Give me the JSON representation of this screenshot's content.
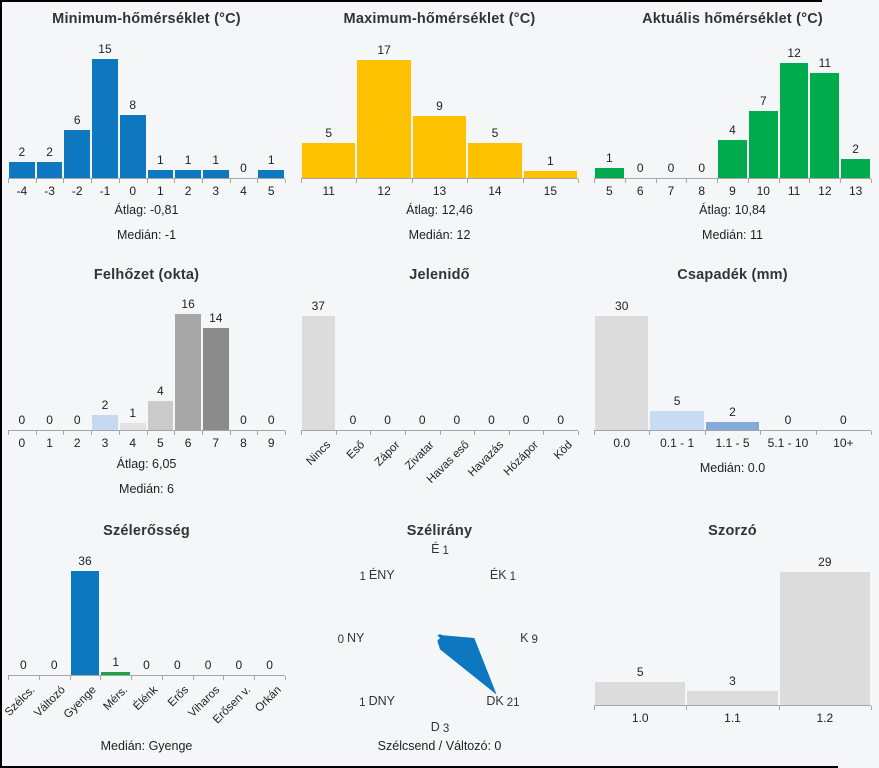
{
  "page": {
    "background": "#f5f6f8",
    "border_color": "#000000",
    "axis_color": "#a6a6a6"
  },
  "chart_data": [
    {
      "type": "bar",
      "title": "Minimum-hőmérséklet (°C)",
      "categories": [
        "-4",
        "-3",
        "-2",
        "-1",
        "0",
        "1",
        "2",
        "3",
        "4",
        "5"
      ],
      "values": [
        2,
        2,
        6,
        15,
        8,
        1,
        1,
        1,
        0,
        1
      ],
      "bar_color": "#0d78bf",
      "stats": [
        "Átlag: -0,81",
        "Medián: -1"
      ]
    },
    {
      "type": "bar",
      "title": "Maximum-hőmérséklet (°C)",
      "categories": [
        "11",
        "12",
        "13",
        "14",
        "15"
      ],
      "values": [
        5,
        17,
        9,
        5,
        1
      ],
      "bar_color": "#fec100",
      "stats": [
        "Átlag: 12,46",
        "Medián: 12"
      ]
    },
    {
      "type": "bar",
      "title": "Aktuális hőmérséklet (°C)",
      "categories": [
        "5",
        "6",
        "7",
        "8",
        "9",
        "10",
        "11",
        "12",
        "13"
      ],
      "values": [
        1,
        0,
        0,
        0,
        4,
        7,
        12,
        11,
        2
      ],
      "bar_color": "#00ab4e",
      "stats": [
        "Átlag: 10,84",
        "Medián: 11"
      ]
    },
    {
      "type": "bar",
      "title": "Felhőzet (okta)",
      "categories": [
        "0",
        "1",
        "2",
        "3",
        "4",
        "5",
        "6",
        "7",
        "8",
        "9"
      ],
      "values": [
        0,
        0,
        0,
        2,
        1,
        4,
        16,
        14,
        0,
        0
      ],
      "bar_colors": [
        "#dcdcdc",
        "#dcdcdc",
        "#dcdcdc",
        "#c6d9f1",
        "#e2e2e2",
        "#cbcbcb",
        "#a7a7a7",
        "#8b8b8b",
        "#dcdcdc",
        "#dcdcdc"
      ],
      "stats": [
        "Átlag: 6,05",
        "Medián: 6"
      ]
    },
    {
      "type": "bar",
      "title": "Jelenidő",
      "categories": [
        "Nincs",
        "Eső",
        "Zápor",
        "Zivatar",
        "Havas eső",
        "Havazás",
        "Hózápor",
        "Köd"
      ],
      "values": [
        37,
        0,
        0,
        0,
        0,
        0,
        0,
        0
      ],
      "bar_color": "#dcdcdc",
      "rotated_labels": true,
      "stats": []
    },
    {
      "type": "bar",
      "title": "Csapadék (mm)",
      "categories": [
        "0.0",
        "0.1 - 1",
        "1.1 - 5",
        "5.1 - 10",
        "10+"
      ],
      "values": [
        30,
        5,
        2,
        0,
        0
      ],
      "bar_colors": [
        "#dcdcdc",
        "#c8dcf4",
        "#84abdd",
        "#dcdcdc",
        "#dcdcdc"
      ],
      "stats": [
        "Medián: 0.0"
      ]
    },
    {
      "type": "bar",
      "title": "Szélerősség",
      "categories": [
        "Szélcs.",
        "Változó",
        "Gyenge",
        "Mérs.",
        "Élénk",
        "Erős",
        "Viharos",
        "Erősen v.",
        "Orkán"
      ],
      "values": [
        0,
        0,
        36,
        1,
        0,
        0,
        0,
        0,
        0
      ],
      "bar_colors": [
        "#dcdcdc",
        "#dcdcdc",
        "#0d78bf",
        "#1ea24c",
        "#dcdcdc",
        "#dcdcdc",
        "#dcdcdc",
        "#dcdcdc",
        "#dcdcdc"
      ],
      "rotated_labels": true,
      "stats": [
        "Medián: Gyenge"
      ]
    },
    {
      "type": "polar",
      "title": "Szélirány",
      "directions": [
        {
          "dir": "É",
          "value": 1,
          "angle": -90
        },
        {
          "dir": "ÉK",
          "value": 1,
          "angle": -45
        },
        {
          "dir": "K",
          "value": 9,
          "angle": 0
        },
        {
          "dir": "DK",
          "value": 21,
          "angle": 45
        },
        {
          "dir": "D",
          "value": 3,
          "angle": 90
        },
        {
          "dir": "DNY",
          "value": 1,
          "angle": 135
        },
        {
          "dir": "NY",
          "value": 0,
          "angle": 180
        },
        {
          "dir": "ÉNY",
          "value": 1,
          "angle": 225
        }
      ],
      "fill_color": "#0d78bf",
      "footer": "Szélcsend / Változó: 0"
    },
    {
      "type": "bar",
      "title": "Szorzó",
      "categories": [
        "1.0",
        "1.1",
        "1.2"
      ],
      "values": [
        5,
        3,
        29
      ],
      "bar_color": "#dcdcdc",
      "stats": []
    }
  ]
}
